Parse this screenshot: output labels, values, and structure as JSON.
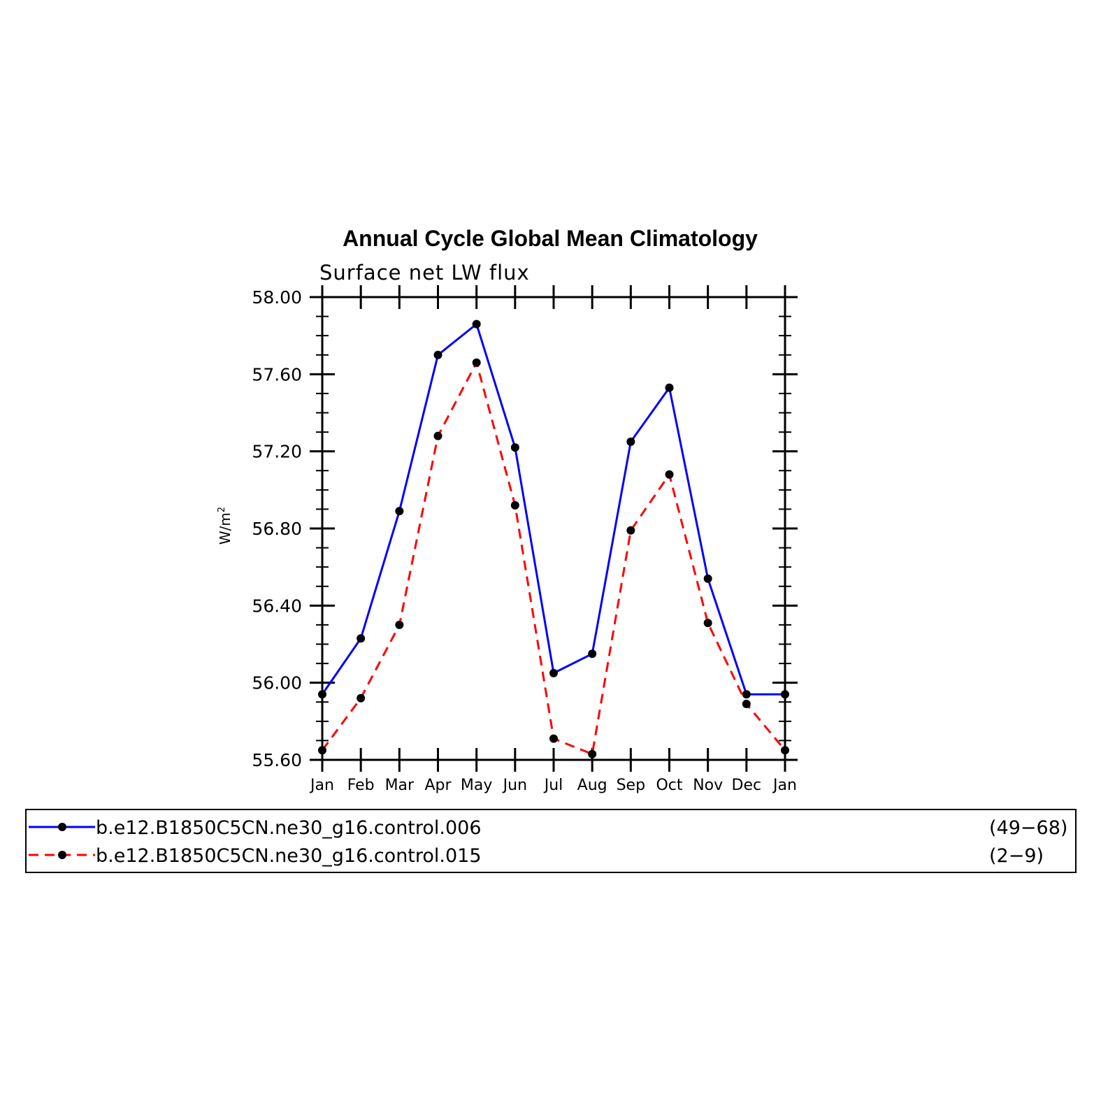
{
  "chart_data": {
    "type": "line",
    "title": "Annual Cycle Global Mean Climatology",
    "subtitle": "Surface net LW flux",
    "ylabel_base": "W/m",
    "ylabel_sup": "2",
    "xlabel": "",
    "categories": [
      "Jan",
      "Feb",
      "Mar",
      "Apr",
      "May",
      "Jun",
      "Jul",
      "Aug",
      "Sep",
      "Oct",
      "Nov",
      "Dec",
      "Jan"
    ],
    "ylim": [
      55.6,
      58.0
    ],
    "yticks": [
      "55.60",
      "56.00",
      "56.40",
      "56.80",
      "57.20",
      "57.60",
      "58.00"
    ],
    "grid": false,
    "legend_position": "bottom",
    "series": [
      {
        "name": "b.e12.B1850C5CN.ne30_g16.control.006",
        "years": "(49−68)",
        "color": "#0000ff",
        "dash": "solid",
        "values": [
          55.94,
          56.23,
          56.89,
          57.7,
          57.86,
          57.22,
          56.05,
          56.15,
          57.25,
          57.53,
          56.54,
          55.94,
          55.94
        ]
      },
      {
        "name": "b.e12.B1850C5CN.ne30_g16.control.015",
        "years": "(2−9)",
        "color": "#ff0000",
        "dash": "dashed",
        "values": [
          55.65,
          55.92,
          56.3,
          57.28,
          57.66,
          56.92,
          55.71,
          55.63,
          56.79,
          57.08,
          56.31,
          55.89,
          55.65
        ]
      }
    ]
  }
}
